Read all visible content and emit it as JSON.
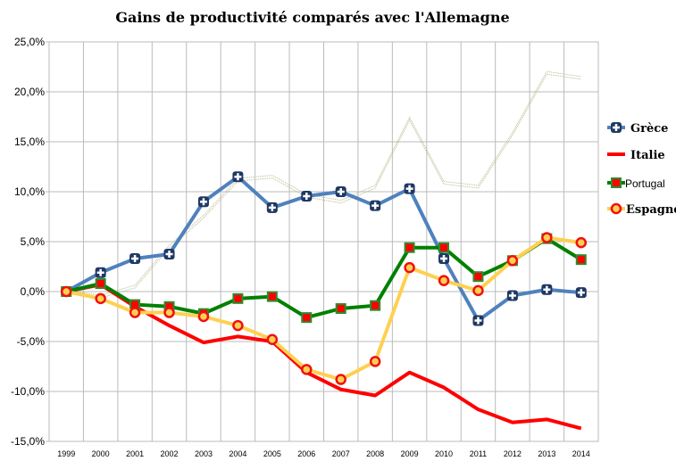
{
  "chart_data": {
    "type": "line",
    "title": "Gains de productivité comparés avec l'Allemagne",
    "categories": [
      "1999",
      "2000",
      "2001",
      "2002",
      "2003",
      "2004",
      "2005",
      "2006",
      "2007",
      "2008",
      "2009",
      "2010",
      "2011",
      "2012",
      "2013",
      "2014"
    ],
    "ylim": [
      -15,
      25
    ],
    "yticks": [
      "-15,0%",
      "-10,0%",
      "-5,0%",
      "0,0%",
      "5,0%",
      "10,0%",
      "15,0%",
      "20,0%",
      "25,0%"
    ],
    "ytick_values": [
      -15,
      -10,
      -5,
      0,
      5,
      10,
      15,
      20,
      25
    ],
    "grid": true,
    "legend": "right",
    "series": [
      {
        "name": "Grèce",
        "color": "#4f81bd",
        "marker": "plus-square",
        "values": [
          0,
          1.9,
          3.3,
          3.75,
          9.0,
          11.5,
          8.4,
          9.55,
          10.0,
          8.6,
          10.3,
          3.3,
          -2.9,
          -0.4,
          0.2,
          -0.1
        ]
      },
      {
        "name": "Italie",
        "color": "#ff0000",
        "marker": "none",
        "values": [
          0,
          0.7,
          -1.5,
          -3.4,
          -5.1,
          -4.5,
          -5.0,
          -8.1,
          -9.8,
          -10.4,
          -8.1,
          -9.6,
          -11.8,
          -13.1,
          -12.8,
          -13.7
        ]
      },
      {
        "name": "Portugal",
        "color": "#008000",
        "marker": "square",
        "values": [
          0,
          0.8,
          -1.3,
          -1.5,
          -2.2,
          -0.7,
          -0.5,
          -2.6,
          -1.7,
          -1.4,
          4.4,
          4.4,
          1.5,
          3.1,
          5.3,
          3.2
        ]
      },
      {
        "name": "Espagne",
        "color": "#ffd050",
        "marker": "circle",
        "values": [
          0,
          -0.7,
          -2.1,
          -2.1,
          -2.5,
          -3.4,
          -4.8,
          -7.8,
          -8.8,
          -7.0,
          2.4,
          1.1,
          0.1,
          3.1,
          5.4,
          4.9
        ]
      },
      {
        "color": "#b8b890",
        "marker": "none",
        "style": "double-dotted",
        "values": [
          0,
          -0.5,
          0.5,
          4.5,
          7.5,
          11.2,
          11.5,
          9.6,
          9.0,
          10.5,
          17.3,
          10.9,
          10.5,
          15.8,
          21.9,
          21.4
        ]
      }
    ]
  }
}
